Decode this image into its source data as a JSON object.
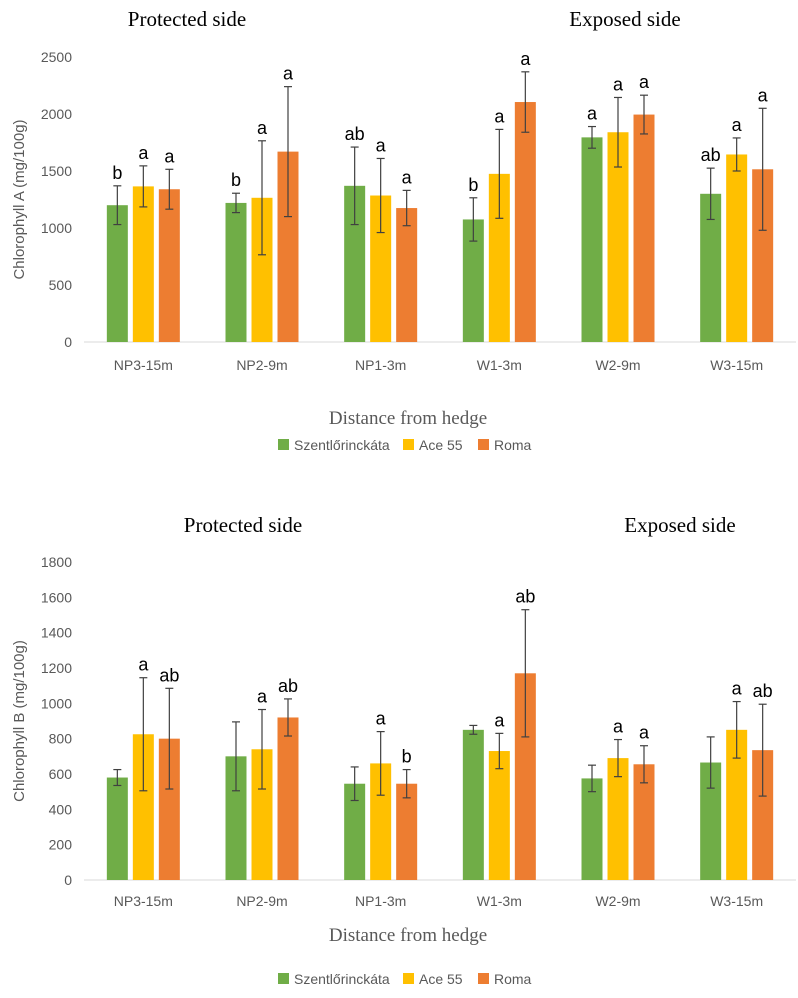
{
  "chart_data": [
    {
      "type": "bar",
      "side_labels": [
        "Protected side",
        "Exposed side"
      ],
      "ylabel": "Chlorophyll A (mg/100g)",
      "xlabel": "Distance from hedge",
      "ylim": [
        0,
        2500
      ],
      "yticks": [
        0,
        500,
        1000,
        1500,
        2000,
        2500
      ],
      "grid": false,
      "legend_position": "bottom",
      "categories": [
        "NP3-15m",
        "NP2-9m",
        "NP1-3m",
        "W1-3m",
        "W2-9m",
        "W3-15m"
      ],
      "series": [
        {
          "name": "Szentlőrinckáta",
          "color": "#70AD47",
          "values": [
            1200,
            1220,
            1370,
            1075,
            1795,
            1300
          ],
          "errors": [
            170,
            85,
            340,
            190,
            95,
            225
          ],
          "letters": [
            "b",
            "b",
            "ab",
            "b",
            "a",
            "ab"
          ]
        },
        {
          "name": "Ace 55",
          "color": "#FFC000",
          "values": [
            1365,
            1265,
            1285,
            1475,
            1840,
            1645
          ],
          "errors": [
            180,
            500,
            325,
            390,
            305,
            145
          ],
          "letters": [
            "a",
            "a",
            "a",
            "a",
            "a",
            "a"
          ]
        },
        {
          "name": "Roma",
          "color": "#ED7D31",
          "values": [
            1340,
            1670,
            1175,
            2105,
            1995,
            1515
          ],
          "errors": [
            175,
            570,
            155,
            265,
            170,
            535
          ],
          "letters": [
            "a",
            "a",
            "a",
            "a",
            "a",
            "a"
          ]
        }
      ]
    },
    {
      "type": "bar",
      "side_labels": [
        "Protected side",
        "Exposed side"
      ],
      "ylabel": "Chlorophyll B (mg/100g)",
      "xlabel": "Distance from hedge",
      "ylim": [
        0,
        1800
      ],
      "yticks": [
        0,
        200,
        400,
        600,
        800,
        1000,
        1200,
        1400,
        1600,
        1800
      ],
      "grid": false,
      "legend_position": "bottom",
      "categories": [
        "NP3-15m",
        "NP2-9m",
        "NP1-3m",
        "W1-3m",
        "W2-9m",
        "W3-15m"
      ],
      "series": [
        {
          "name": "Szentlőrinckáta",
          "color": "#70AD47",
          "values": [
            580,
            700,
            545,
            850,
            575,
            665
          ],
          "errors": [
            45,
            195,
            95,
            25,
            75,
            145
          ],
          "letters": [
            "",
            "",
            "",
            "",
            "",
            ""
          ]
        },
        {
          "name": "Ace 55",
          "color": "#FFC000",
          "values": [
            825,
            740,
            660,
            730,
            690,
            850
          ],
          "errors": [
            320,
            225,
            180,
            100,
            105,
            160
          ],
          "letters": [
            "a",
            "a",
            "a",
            "a",
            "a",
            "a"
          ]
        },
        {
          "name": "Roma",
          "color": "#ED7D31",
          "values": [
            800,
            920,
            545,
            1170,
            655,
            735
          ],
          "errors": [
            285,
            105,
            80,
            360,
            105,
            260
          ],
          "letters": [
            "ab",
            "ab",
            "b",
            "ab",
            "a",
            "ab"
          ]
        }
      ]
    }
  ]
}
